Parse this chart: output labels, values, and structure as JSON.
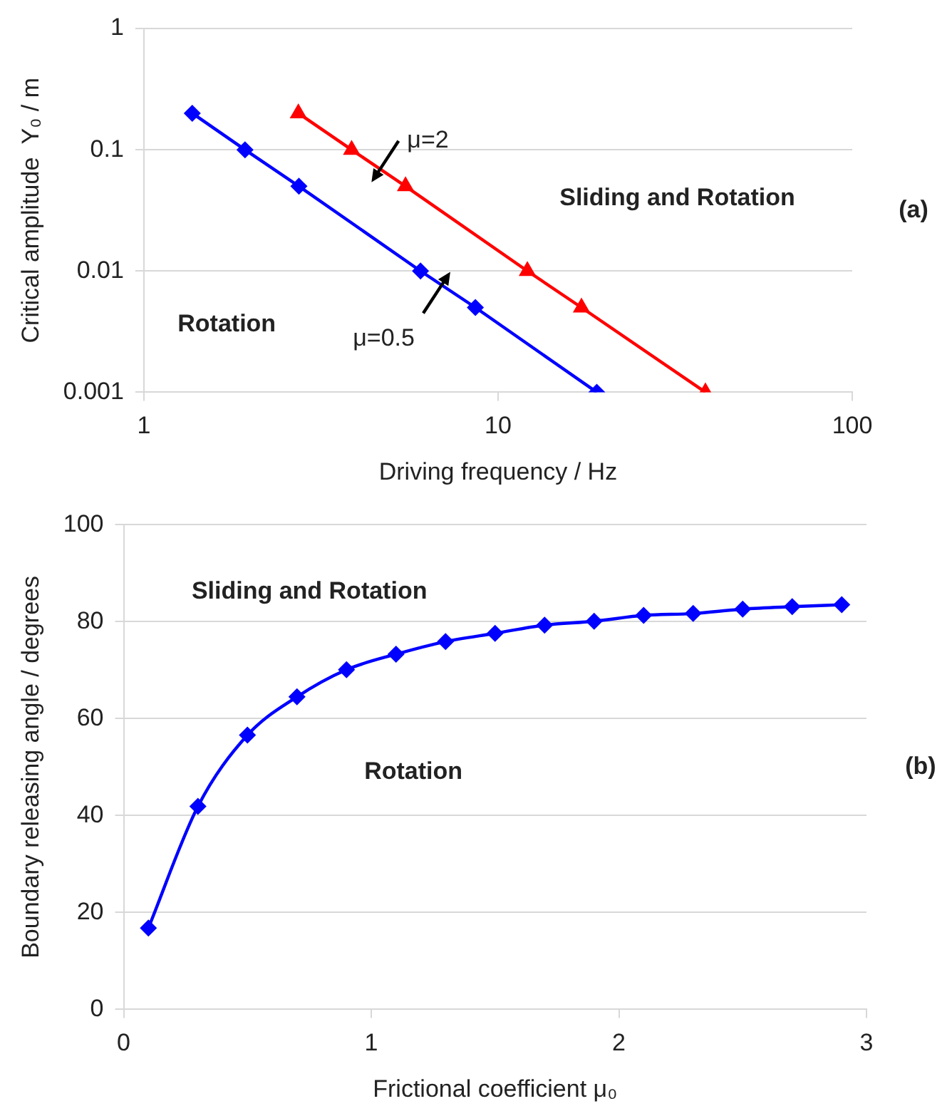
{
  "chart_data": [
    {
      "type": "line",
      "xlabel": "Driving frequency / Hz",
      "ylabel": "Critical amplitude  Y₀ / m",
      "log": "xy",
      "grid": "y",
      "legend": false,
      "xlim": [
        1,
        100
      ],
      "xticks": [
        1,
        10,
        100
      ],
      "ylim": [
        0.001,
        1
      ],
      "yticks": [
        0.001,
        0.01,
        0.1,
        1
      ],
      "series": [
        {
          "color": "#0000ff",
          "marker": "diamond",
          "x": [
            1.37,
            1.93,
            2.74,
            6.04,
            8.63,
            19.0
          ],
          "values": [
            0.2,
            0.1,
            0.05,
            0.01,
            0.005,
            0.001
          ]
        },
        {
          "color": "#ff0000",
          "marker": "triangle",
          "x": [
            2.73,
            3.86,
            5.48,
            12.1,
            17.2,
            38.5
          ],
          "values": [
            0.2,
            0.1,
            0.05,
            0.01,
            0.005,
            0.001
          ]
        }
      ],
      "annotations": [
        {
          "text": "μ=2",
          "x": 4.6,
          "y": 0.0707
        },
        {
          "text": "μ=0.5",
          "x": 7.0,
          "y": 0.0075
        },
        "Sliding and Rotation",
        "Rotation",
        "(a)"
      ]
    },
    {
      "type": "line",
      "xlabel": "Frictional coefficient μ₀",
      "ylabel": "Boundary releasing angle / degrees",
      "grid": "y",
      "legend": false,
      "xlim": [
        0,
        3
      ],
      "xticks": [
        0,
        1,
        2,
        3
      ],
      "ylim": [
        0,
        100
      ],
      "yticks": [
        0,
        20,
        40,
        60,
        80,
        100
      ],
      "series": [
        {
          "color": "#0000ff",
          "marker": "diamond",
          "x": [
            0.1,
            0.3,
            0.5,
            0.7,
            0.9,
            1.1,
            1.3,
            1.5,
            1.7,
            1.9,
            2.1,
            2.3,
            2.5,
            2.7,
            2.9
          ],
          "values": [
            16.8,
            41.9,
            56.6,
            64.5,
            70.1,
            73.3,
            75.9,
            77.6,
            79.3,
            80.1,
            81.3,
            81.7,
            82.6,
            83.1,
            83.5
          ]
        }
      ],
      "annotations": [
        "Sliding and Rotation",
        "Rotation",
        "(b)"
      ]
    }
  ]
}
